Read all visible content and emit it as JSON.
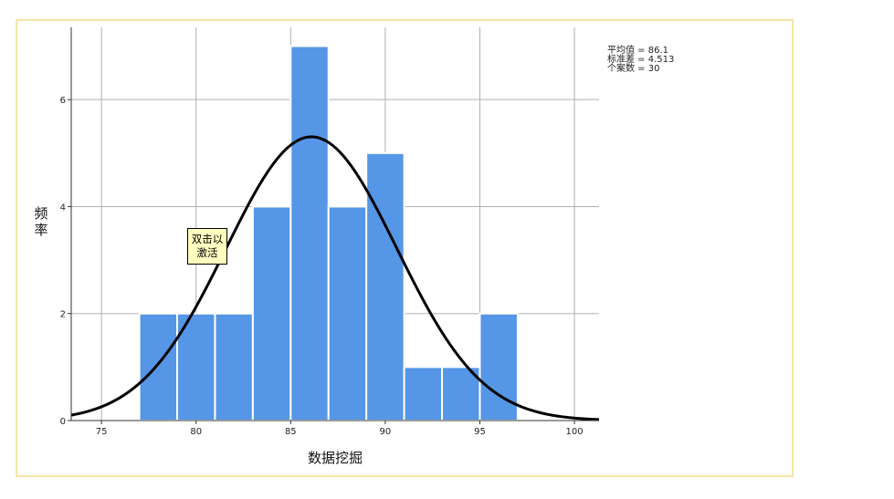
{
  "chart_data": {
    "type": "bar",
    "subtype": "histogram",
    "xlabel": "数据挖掘",
    "ylabel": "频率",
    "xlim": [
      73.4,
      101.3
    ],
    "ylim": [
      0,
      7.35
    ],
    "xticks": [
      75,
      80,
      85,
      90,
      95,
      100
    ],
    "yticks": [
      0,
      2,
      4,
      6
    ],
    "bins": [
      {
        "start": 77.0,
        "end": 79.0,
        "count": 2
      },
      {
        "start": 79.0,
        "end": 81.0,
        "count": 2
      },
      {
        "start": 81.0,
        "end": 83.0,
        "count": 2
      },
      {
        "start": 83.0,
        "end": 85.0,
        "count": 4
      },
      {
        "start": 85.0,
        "end": 87.0,
        "count": 7
      },
      {
        "start": 87.0,
        "end": 89.0,
        "count": 4
      },
      {
        "start": 89.0,
        "end": 91.0,
        "count": 5
      },
      {
        "start": 91.0,
        "end": 93.0,
        "count": 1
      },
      {
        "start": 93.0,
        "end": 95.0,
        "count": 1
      },
      {
        "start": 95.0,
        "end": 97.0,
        "count": 2
      }
    ],
    "normal_curve": {
      "mean": 86.1,
      "std": 4.513,
      "n": 30,
      "bin_width": 2.0
    },
    "stats_text": [
      "平均值 = 86.1",
      "标准差 = 4.513",
      "个案数 = 30"
    ],
    "grid": true,
    "legend_position": "top-right",
    "colors": {
      "bar": "#5596e6",
      "bar_edge": "#ffffff",
      "curve": "#000000",
      "grid": "#b0b0b0",
      "frame": "#f5e6a8"
    }
  },
  "tooltip": {
    "lines": [
      "双击以",
      "激活"
    ]
  }
}
